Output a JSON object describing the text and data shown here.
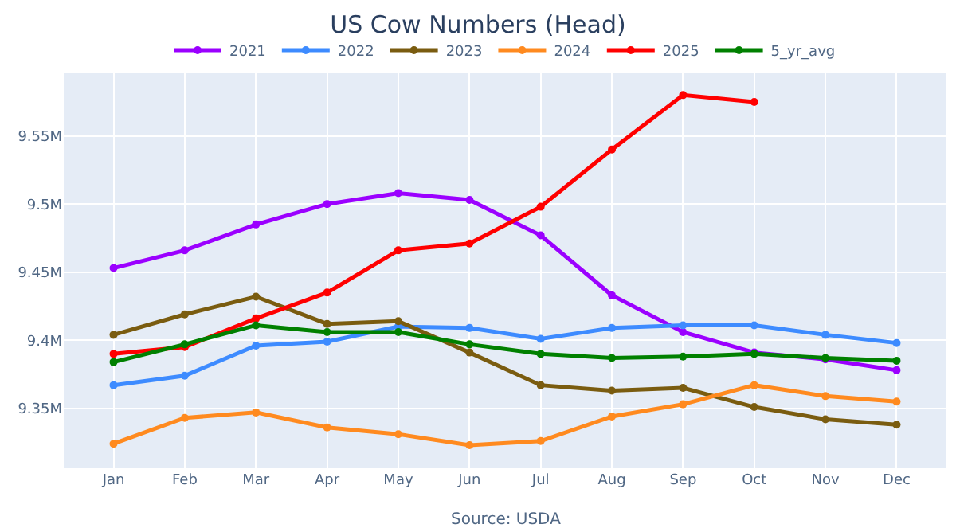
{
  "chart_data": {
    "type": "line",
    "title": "US Cow Numbers (Head)",
    "annotations": [
      "Source: USDA"
    ],
    "categories": [
      "Jan",
      "Feb",
      "Mar",
      "Apr",
      "May",
      "Jun",
      "Jul",
      "Aug",
      "Sep",
      "Oct",
      "Nov",
      "Dec"
    ],
    "ylim": [
      9306000,
      9596000
    ],
    "yticks": [
      {
        "value": 9350000,
        "label": "9.35M"
      },
      {
        "value": 9400000,
        "label": "9.4M"
      },
      {
        "value": 9450000,
        "label": "9.45M"
      },
      {
        "value": 9500000,
        "label": "9.5M"
      },
      {
        "value": 9550000,
        "label": "9.55M"
      }
    ],
    "grid": true,
    "legend": "top",
    "marker": "circle",
    "line_style": "solid",
    "series": [
      {
        "name": "2021",
        "color": "#9b00ff",
        "values": [
          9453000,
          9466000,
          9485000,
          9500000,
          9508000,
          9503000,
          9477000,
          9433000,
          9406000,
          9391000,
          9386000,
          9378000
        ]
      },
      {
        "name": "2022",
        "color": "#3d8bff",
        "values": [
          9367000,
          9374000,
          9396000,
          9399000,
          9410000,
          9409000,
          9401000,
          9409000,
          9411000,
          9411000,
          9404000,
          9398000
        ]
      },
      {
        "name": "2023",
        "color": "#7a5c10",
        "values": [
          9404000,
          9419000,
          9432000,
          9412000,
          9414000,
          9391000,
          9367000,
          9363000,
          9365000,
          9351000,
          9342000,
          9338000
        ]
      },
      {
        "name": "2024",
        "color": "#ff8a1f",
        "values": [
          9324000,
          9343000,
          9347000,
          9336000,
          9331000,
          9323000,
          9326000,
          9344000,
          9353000,
          9367000,
          9359000,
          9355000
        ]
      },
      {
        "name": "2025",
        "color": "#ff0000",
        "values": [
          9390000,
          9395000,
          9416000,
          9435000,
          9466000,
          9471000,
          9498000,
          9540000,
          9580000,
          9575000,
          null,
          null
        ]
      },
      {
        "name": "5_yr_avg",
        "color": "#008000",
        "values": [
          9384000,
          9397000,
          9411000,
          9406000,
          9406000,
          9397000,
          9390000,
          9387000,
          9388000,
          9390000,
          9387000,
          9385000
        ]
      }
    ]
  }
}
